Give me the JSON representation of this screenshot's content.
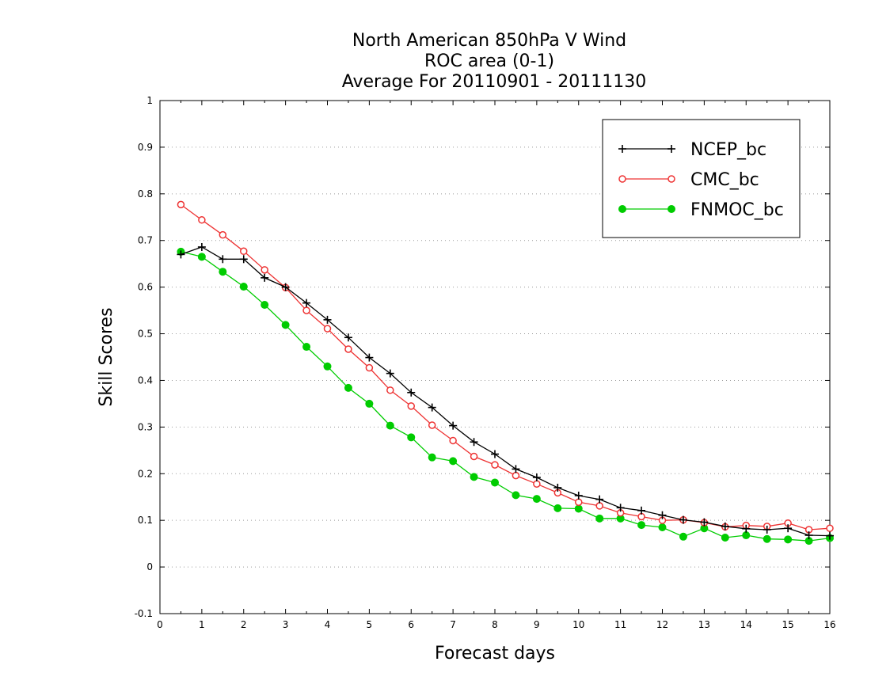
{
  "chart_data": {
    "type": "line",
    "title": [
      "North American 850hPa V Wind",
      "ROC area (0-1)",
      "Average For 20110901 - 20111130"
    ],
    "xlabel": "Forecast days",
    "ylabel": "Skill Scores",
    "xlim": [
      0,
      16
    ],
    "ylim": [
      -0.1,
      1
    ],
    "x_ticks": [
      "0",
      "1",
      "2",
      "3",
      "4",
      "5",
      "6",
      "7",
      "8",
      "9",
      "10",
      "11",
      "12",
      "13",
      "14",
      "15",
      "16"
    ],
    "y_ticks": [
      "-0.1",
      "0",
      "0.1",
      "0.2",
      "0.3",
      "0.4",
      "0.5",
      "0.6",
      "0.7",
      "0.8",
      "0.9",
      "1"
    ],
    "grid": true,
    "legend_position": "top-right",
    "x": [
      0.5,
      1,
      1.5,
      2,
      2.5,
      3,
      3.5,
      4,
      4.5,
      5,
      5.5,
      6,
      6.5,
      7,
      7.5,
      8,
      8.5,
      9,
      9.5,
      10,
      10.5,
      11,
      11.5,
      12,
      12.5,
      13,
      13.5,
      14,
      14.5,
      15,
      15.5,
      16
    ],
    "series": [
      {
        "name": "NCEP_bc",
        "color": "#000000",
        "marker": "plus",
        "values": [
          0.67,
          0.686,
          0.66,
          0.66,
          0.62,
          0.6,
          0.566,
          0.53,
          0.492,
          0.449,
          0.415,
          0.374,
          0.342,
          0.303,
          0.268,
          0.242,
          0.21,
          0.192,
          0.17,
          0.153,
          0.145,
          0.127,
          0.121,
          0.111,
          0.101,
          0.096,
          0.087,
          0.082,
          0.08,
          0.083,
          0.068,
          0.067
        ]
      },
      {
        "name": "CMC_bc",
        "color": "#ee3333",
        "marker": "open-circle",
        "values": [
          0.777,
          0.744,
          0.712,
          0.677,
          0.637,
          0.599,
          0.55,
          0.511,
          0.467,
          0.427,
          0.379,
          0.345,
          0.304,
          0.271,
          0.237,
          0.219,
          0.196,
          0.178,
          0.159,
          0.139,
          0.131,
          0.116,
          0.108,
          0.1,
          0.101,
          0.095,
          0.086,
          0.089,
          0.087,
          0.094,
          0.08,
          0.083
        ]
      },
      {
        "name": "FNMOC_bc",
        "color": "#00cc00",
        "marker": "filled-circle",
        "values": [
          0.676,
          0.665,
          0.633,
          0.601,
          0.562,
          0.519,
          0.472,
          0.43,
          0.384,
          0.35,
          0.303,
          0.278,
          0.235,
          0.227,
          0.193,
          0.181,
          0.154,
          0.146,
          0.126,
          0.125,
          0.104,
          0.104,
          0.09,
          0.085,
          0.065,
          0.083,
          0.063,
          0.068,
          0.06,
          0.059,
          0.056,
          0.062
        ]
      }
    ]
  }
}
